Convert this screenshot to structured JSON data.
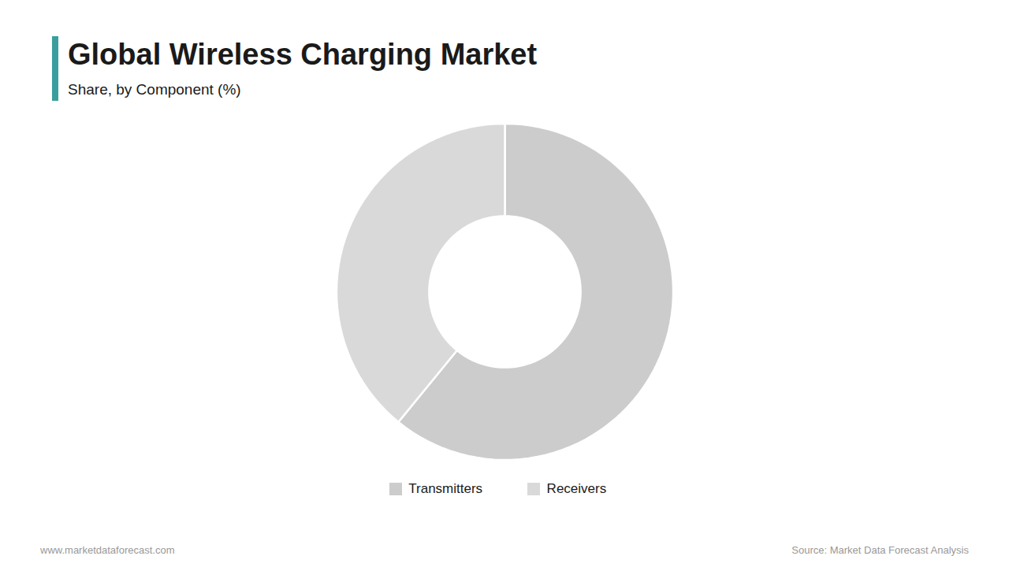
{
  "chart_data": {
    "type": "pie",
    "title": "Global Wireless Charging Market",
    "subtitle": "Share, by Component (%)",
    "categories": [
      "Transmitters",
      "Receivers"
    ],
    "values": [
      60.9,
      39.1
    ],
    "colors": [
      "#cccccc",
      "#d9d9d9"
    ],
    "legend": "bottom",
    "annotations": [
      "www.marketdataforecast.com",
      "Source: Market Data Forecast Analysis"
    ]
  }
}
